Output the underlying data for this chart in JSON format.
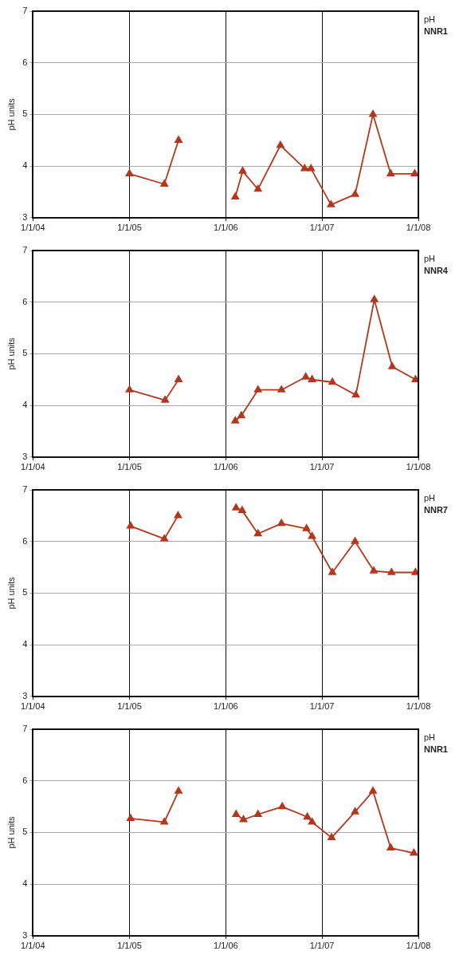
{
  "chart_data": [
    {
      "type": "line",
      "title": "pH",
      "subtitle": "NNR1",
      "ylabel": "pH units",
      "xlim": [
        "2004-01-01",
        "2008-01-01"
      ],
      "xticks": [
        {
          "value": "2004-01-01",
          "label": "1/1/04"
        },
        {
          "value": "2005-01-01",
          "label": "1/1/05"
        },
        {
          "value": "2006-01-01",
          "label": "1/1/06"
        },
        {
          "value": "2007-01-01",
          "label": "1/1/07"
        },
        {
          "value": "2008-01-01",
          "label": "1/1/08"
        }
      ],
      "ylim": [
        3,
        7
      ],
      "yticks": [
        3,
        4,
        5,
        6,
        7
      ],
      "grid": true,
      "legend": false,
      "marker": "triangle",
      "line_style": "solid",
      "series": [
        {
          "color": "#b5361c",
          "x": [
            "2005-01-01",
            "2005-05-13",
            "2005-07-06",
            "2005-10-15",
            "2006-02-06",
            "2006-03-06",
            "2006-05-03",
            "2006-07-27",
            "2006-10-27",
            "2006-11-20",
            "2007-02-04",
            "2007-05-06",
            "2007-07-13",
            "2007-09-18",
            "2007-12-18"
          ],
          "values": [
            3.85,
            3.65,
            4.5,
            null,
            3.4,
            3.9,
            3.55,
            4.4,
            3.95,
            3.95,
            3.25,
            3.45,
            5.0,
            3.85,
            3.85
          ]
        }
      ]
    },
    {
      "type": "line",
      "title": "pH",
      "subtitle": "NNR4",
      "ylabel": "pH units",
      "xlim": [
        "2004-01-01",
        "2008-01-01"
      ],
      "xticks": [
        {
          "value": "2004-01-01",
          "label": "1/1/04"
        },
        {
          "value": "2005-01-01",
          "label": "1/1/05"
        },
        {
          "value": "2006-01-01",
          "label": "1/1/06"
        },
        {
          "value": "2007-01-01",
          "label": "1/1/07"
        },
        {
          "value": "2008-01-01",
          "label": "1/1/08"
        }
      ],
      "ylim": [
        3,
        7
      ],
      "yticks": [
        3,
        4,
        5,
        6,
        7
      ],
      "grid": true,
      "legend": false,
      "marker": "triangle",
      "line_style": "solid",
      "series": [
        {
          "color": "#b5361c",
          "x": [
            "2005-01-01",
            "2005-05-16",
            "2005-07-06",
            "2005-10-15",
            "2006-02-06",
            "2006-03-01",
            "2006-05-03",
            "2006-07-31",
            "2006-10-31",
            "2006-11-24",
            "2007-02-09",
            "2007-05-09",
            "2007-07-18",
            "2007-09-24",
            "2007-12-21"
          ],
          "values": [
            4.3,
            4.1,
            4.5,
            null,
            3.7,
            3.8,
            4.3,
            4.3,
            4.55,
            4.5,
            4.45,
            4.2,
            6.05,
            4.75,
            4.5
          ]
        }
      ]
    },
    {
      "type": "line",
      "title": "pH",
      "subtitle": "NNR7",
      "ylabel": "pH units",
      "xlim": [
        "2004-01-01",
        "2008-01-01"
      ],
      "xticks": [
        {
          "value": "2004-01-01",
          "label": "1/1/04"
        },
        {
          "value": "2005-01-01",
          "label": "1/1/05"
        },
        {
          "value": "2006-01-01",
          "label": "1/1/06"
        },
        {
          "value": "2007-01-01",
          "label": "1/1/07"
        },
        {
          "value": "2008-01-01",
          "label": "1/1/08"
        }
      ],
      "ylim": [
        3,
        7
      ],
      "yticks": [
        3,
        4,
        5,
        6,
        7
      ],
      "grid": true,
      "legend": false,
      "marker": "triangle",
      "line_style": "solid",
      "series": [
        {
          "color": "#b5361c",
          "x": [
            "2005-01-05",
            "2005-05-13",
            "2005-07-04",
            "2005-10-15",
            "2006-02-09",
            "2006-03-04",
            "2006-05-03",
            "2006-07-31",
            "2006-11-03",
            "2006-11-24",
            "2007-02-09",
            "2007-05-06",
            "2007-07-16",
            "2007-09-21",
            "2007-12-21"
          ],
          "values": [
            6.3,
            6.05,
            6.5,
            null,
            6.65,
            6.6,
            6.15,
            6.35,
            6.25,
            6.1,
            5.4,
            6.0,
            5.43,
            5.4,
            5.4
          ]
        }
      ]
    },
    {
      "type": "line",
      "title": "pH",
      "subtitle": "NNR1",
      "ylabel": "pH units",
      "xlim": [
        "2004-01-01",
        "2008-01-01"
      ],
      "xticks": [
        {
          "value": "2004-01-01",
          "label": "1/1/04"
        },
        {
          "value": "2005-01-01",
          "label": "1/1/05"
        },
        {
          "value": "2006-01-01",
          "label": "1/1/06"
        },
        {
          "value": "2007-01-01",
          "label": "1/1/07"
        },
        {
          "value": "2008-01-01",
          "label": "1/1/08"
        }
      ],
      "ylim": [
        3,
        7
      ],
      "yticks": [
        3,
        4,
        5,
        6,
        7
      ],
      "grid": true,
      "legend": false,
      "marker": "triangle",
      "line_style": "solid",
      "series": [
        {
          "color": "#b5361c",
          "x": [
            "2005-01-05",
            "2005-05-13",
            "2005-07-06",
            "2005-10-15",
            "2006-02-09",
            "2006-03-09",
            "2006-05-03",
            "2006-08-03",
            "2006-11-06",
            "2006-11-24",
            "2007-02-06",
            "2007-05-06",
            "2007-07-13",
            "2007-09-18",
            "2007-12-15"
          ],
          "values": [
            5.27,
            5.2,
            5.8,
            null,
            5.35,
            5.25,
            5.35,
            5.5,
            5.3,
            5.2,
            4.9,
            5.4,
            5.8,
            4.7,
            4.6
          ]
        }
      ]
    }
  ]
}
